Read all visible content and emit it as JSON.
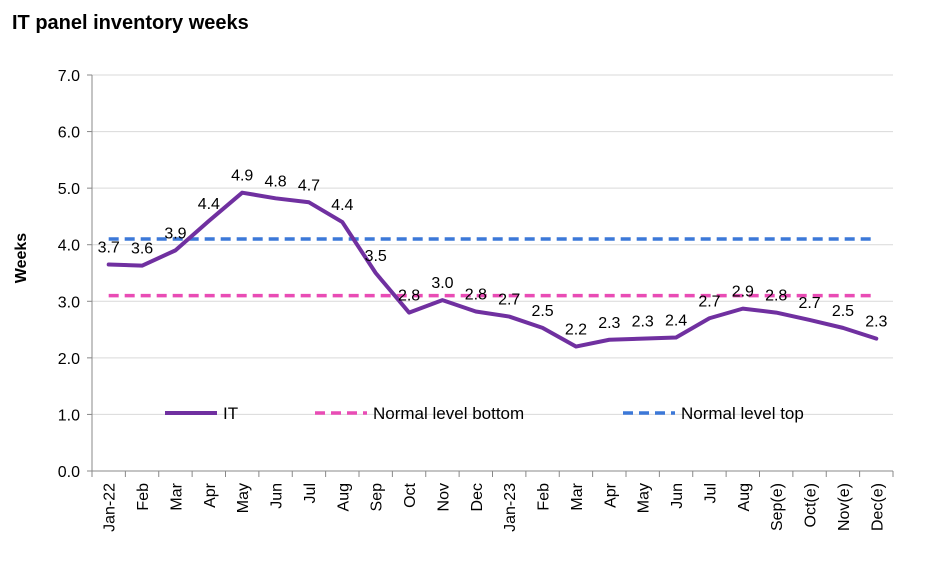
{
  "chart_data": {
    "type": "line",
    "title": "IT panel inventory weeks",
    "ylabel": "Weeks",
    "xlabel": "",
    "ylim": [
      0,
      7
    ],
    "yticks": [
      "0.0",
      "1.0",
      "2.0",
      "3.0",
      "4.0",
      "5.0",
      "6.0",
      "7.0"
    ],
    "grid": true,
    "legend_position": "inside-bottom",
    "categories": [
      "Jan-22",
      "Feb",
      "Mar",
      "Apr",
      "May",
      "Jun",
      "Jul",
      "Aug",
      "Sep",
      "Oct",
      "Nov",
      "Dec",
      "Jan-23",
      "Feb",
      "Mar",
      "Apr",
      "May",
      "Jun",
      "Jul",
      "Aug",
      "Sep(e)",
      "Oct(e)",
      "Nov(e)",
      "Dec(e)"
    ],
    "series": [
      {
        "name": "IT",
        "color": "#7030A0",
        "style": "solid",
        "values": [
          3.65,
          3.63,
          3.9,
          4.42,
          4.92,
          4.82,
          4.75,
          4.4,
          3.5,
          2.8,
          3.02,
          2.82,
          2.73,
          2.53,
          2.2,
          2.32,
          2.34,
          2.36,
          2.7,
          2.87,
          2.8,
          2.67,
          2.53,
          2.34
        ],
        "labels": [
          "3.7",
          "3.6",
          "3.9",
          "4.4",
          "4.9",
          "4.8",
          "4.7",
          "4.4",
          "3.5",
          "2.8",
          "3.0",
          "2.8",
          "2.7",
          "2.5",
          "2.2",
          "2.3",
          "2.3",
          "2.4",
          "2.7",
          "2.9",
          "2.8",
          "2.7",
          "2.5",
          "2.3"
        ]
      },
      {
        "name": "Normal level bottom",
        "color": "#E94CB5",
        "style": "dashed",
        "values": [
          3.1,
          3.1,
          3.1,
          3.1,
          3.1,
          3.1,
          3.1,
          3.1,
          3.1,
          3.1,
          3.1,
          3.1,
          3.1,
          3.1,
          3.1,
          3.1,
          3.1,
          3.1,
          3.1,
          3.1,
          3.1,
          3.1,
          3.1,
          3.1
        ]
      },
      {
        "name": "Normal level top",
        "color": "#3C78D8",
        "style": "dashed",
        "values": [
          4.1,
          4.1,
          4.1,
          4.1,
          4.1,
          4.1,
          4.1,
          4.1,
          4.1,
          4.1,
          4.1,
          4.1,
          4.1,
          4.1,
          4.1,
          4.1,
          4.1,
          4.1,
          4.1,
          4.1,
          4.1,
          4.1,
          4.1,
          4.1
        ]
      }
    ]
  }
}
